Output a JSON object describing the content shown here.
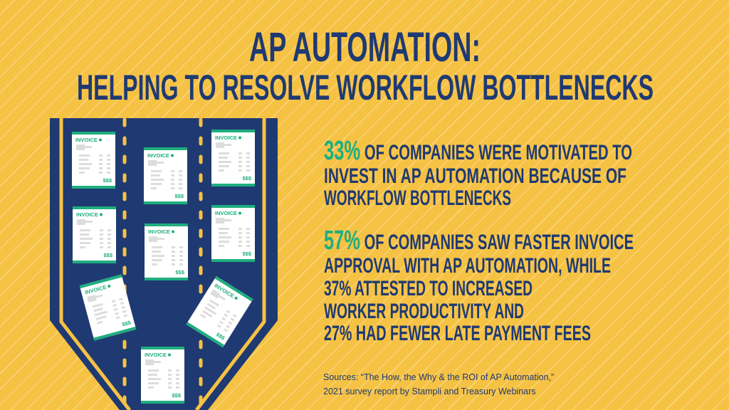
{
  "title": {
    "line1": "AP AUTOMATION:",
    "line2": "HELPING TO RESOLVE WORKFLOW BOTTLENECKS"
  },
  "stat1": {
    "percent": "33%",
    "lines": [
      "OF COMPANIES WERE MOTIVATED TO",
      "INVEST IN AP AUTOMATION BECAUSE OF",
      "WORKFLOW BOTTLENECKS"
    ]
  },
  "stat2": {
    "percent": "57%",
    "lines": [
      "OF COMPANIES SAW FASTER INVOICE",
      "APPROVAL WITH AP AUTOMATION, WHILE",
      "37% ATTESTED TO INCREASED",
      "WORKER PRODUCTIVITY AND",
      "27% HAD FEWER LATE PAYMENT FEES"
    ]
  },
  "sources": {
    "line1": "Sources:  “The How, the Why & the ROI of AP Automation,”",
    "line2": "2021 survey report by Stampli and Treasury Webinars"
  },
  "invoice": {
    "label": "INVOICE",
    "amount": "$$$",
    "count": 9
  },
  "colors": {
    "background": "#F6C244",
    "navy": "#1F3A72",
    "green": "#1FAE7E",
    "road_line": "#F6C244",
    "paper": "#FFFFFF"
  }
}
